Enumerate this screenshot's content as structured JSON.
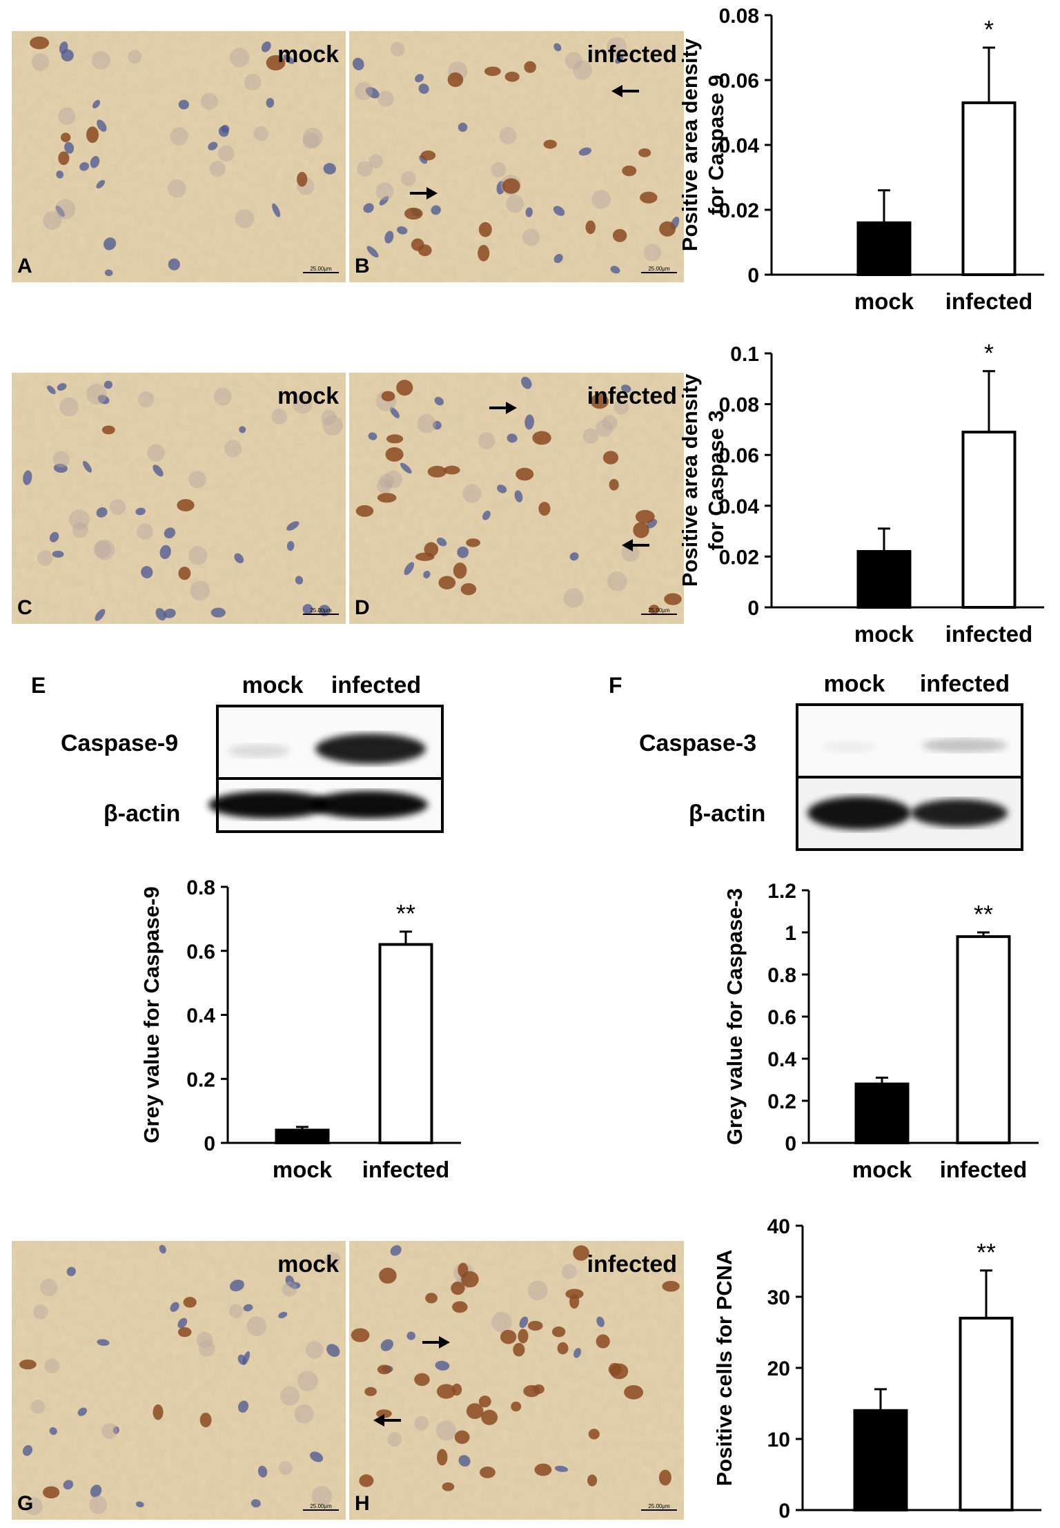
{
  "panels": {
    "A": "A",
    "B": "B",
    "C": "C",
    "D": "D",
    "E": "E",
    "F": "F",
    "G": "G",
    "H": "H"
  },
  "micrographs": [
    {
      "id": "A",
      "label": "mock",
      "scale": "25.00μm"
    },
    {
      "id": "B",
      "label": "infected",
      "scale": "25.00μm"
    },
    {
      "id": "C",
      "label": "mock",
      "scale": "25.00μm"
    },
    {
      "id": "D",
      "label": "infected",
      "scale": "25.00μm"
    },
    {
      "id": "G",
      "label": "mock",
      "scale": "25.00μm"
    },
    {
      "id": "H",
      "label": "infected",
      "scale": "25.00μm"
    }
  ],
  "blots": {
    "E": {
      "lanes": [
        "mock",
        "infected"
      ],
      "rows": [
        "Caspase-9",
        "β-actin"
      ]
    },
    "F": {
      "lanes": [
        "mock",
        "infected"
      ],
      "rows": [
        "Caspase-3",
        "β-actin"
      ]
    }
  },
  "colors": {
    "mock_bar": "#000000",
    "infected_bar": "#ffffff",
    "stain_brown": "#8b4a22",
    "stain_blue": "#4a5590",
    "tissue": "#e6d2ad"
  },
  "chart_data": [
    {
      "id": "caspase9-ihc",
      "type": "bar",
      "categories": [
        "mock",
        "infected"
      ],
      "values": [
        0.016,
        0.053
      ],
      "errors": [
        0.01,
        0.017
      ],
      "significance": [
        "",
        "*"
      ],
      "ylabel": "Positive area density for Caspase 9",
      "ylim": [
        0,
        0.08
      ],
      "yticks": [
        "0",
        "0.02",
        "0.04",
        "0.06",
        "0.08"
      ]
    },
    {
      "id": "caspase3-ihc",
      "type": "bar",
      "categories": [
        "mock",
        "infected"
      ],
      "values": [
        0.022,
        0.069
      ],
      "errors": [
        0.009,
        0.024
      ],
      "significance": [
        "",
        "*"
      ],
      "ylabel": "Positive area density for Caspase 3",
      "ylim": [
        0,
        0.1
      ],
      "yticks": [
        "0",
        "0.02",
        "0.04",
        "0.06",
        "0.08",
        "0.1"
      ]
    },
    {
      "id": "caspase9-wb",
      "type": "bar",
      "categories": [
        "mock",
        "infected"
      ],
      "values": [
        0.04,
        0.62
      ],
      "errors": [
        0.01,
        0.04
      ],
      "significance": [
        "",
        "**"
      ],
      "ylabel": "Grey value for Caspase-9",
      "ylim": [
        0,
        0.8
      ],
      "yticks": [
        "0",
        "0.2",
        "0.4",
        "0.6",
        "0.8"
      ]
    },
    {
      "id": "caspase3-wb",
      "type": "bar",
      "categories": [
        "mock",
        "infected"
      ],
      "values": [
        0.28,
        0.98
      ],
      "errors": [
        0.03,
        0.02
      ],
      "significance": [
        "",
        "**"
      ],
      "ylabel": "Grey value for Caspase-3",
      "ylim": [
        0,
        1.2
      ],
      "yticks": [
        "0",
        "0.2",
        "0.4",
        "0.6",
        "0.8",
        "1",
        "1.2"
      ]
    },
    {
      "id": "pcna-ihc",
      "type": "bar",
      "categories": [
        "mock",
        "infected"
      ],
      "values": [
        14,
        27
      ],
      "errors": [
        3,
        6.7
      ],
      "significance": [
        "",
        "**"
      ],
      "ylabel": "Positive cells for PCNA",
      "ylim": [
        0,
        40
      ],
      "yticks": [
        "0",
        "10",
        "20",
        "30",
        "40"
      ]
    }
  ]
}
